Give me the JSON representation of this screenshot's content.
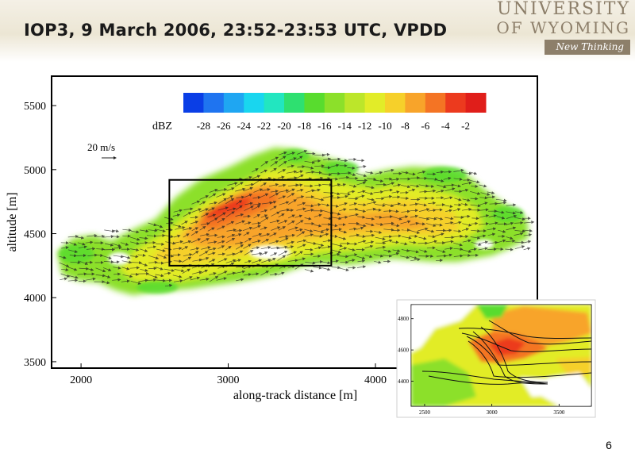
{
  "slide": {
    "title": "IOP3,  9 March 2006, 23:52-23:53 UTC, VPDD",
    "page_number": "6"
  },
  "logo": {
    "line1": "UNIVERSITY",
    "line2": "OF WYOMING",
    "tagline": "New Thinking",
    "color": "#8d7f6a"
  },
  "chart_data": [
    {
      "type": "heatmap",
      "xlabel": "along-track distance [m]",
      "ylabel": "altitude [m]",
      "xlim": [
        1800,
        5100
      ],
      "ylim": [
        3450,
        5730
      ],
      "xticks": [
        2000,
        3000,
        4000
      ],
      "yticks": [
        3500,
        4000,
        4500,
        5000,
        5500
      ],
      "colorbar": {
        "label": "dBZ",
        "ticks": [
          "-28",
          "-26",
          "-24",
          "-22",
          "-20",
          "-18",
          "-16",
          "-14",
          "-12",
          "-10",
          "-8",
          "-6",
          "-4",
          "-2"
        ],
        "colors": [
          "#0a3ee6",
          "#1f74f0",
          "#1fa6f2",
          "#19d6ef",
          "#22e6c0",
          "#2ee070",
          "#58dc2e",
          "#8ce02a",
          "#bce62a",
          "#e2ec28",
          "#f6d02a",
          "#f8a42a",
          "#f47424",
          "#ec3a1e",
          "#e01e1a"
        ]
      },
      "vector_scale_label": "20 m/s",
      "box": {
        "x": [
          2600,
          3700
        ],
        "y": [
          4250,
          4920
        ]
      }
    },
    {
      "type": "heatmap",
      "xticks": [
        2500,
        3000,
        3500
      ],
      "yticks": [
        4400,
        4600,
        4800
      ],
      "xlim": [
        2400,
        3740
      ],
      "ylim": [
        4240,
        4890
      ]
    }
  ]
}
